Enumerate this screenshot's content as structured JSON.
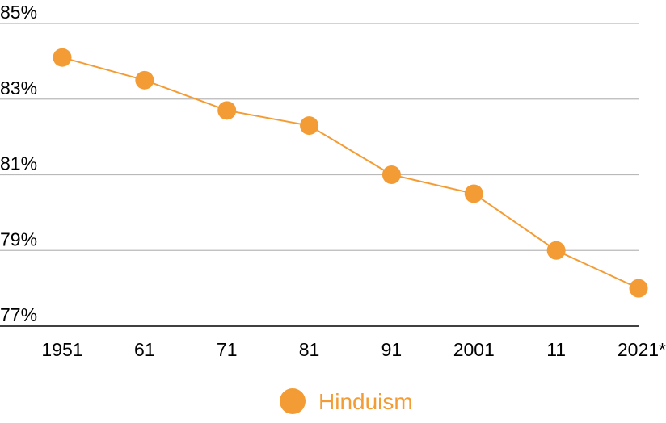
{
  "chart_data": {
    "type": "line",
    "categories": [
      "1951",
      "61",
      "71",
      "81",
      "91",
      "2001",
      "11",
      "2021*"
    ],
    "series": [
      {
        "name": "Hinduism",
        "values": [
          84.1,
          83.5,
          82.7,
          82.3,
          81.0,
          80.5,
          79.0,
          78.0
        ],
        "color": "#F39C35"
      }
    ],
    "y_ticks": [
      "77%",
      "79%",
      "81%",
      "83%",
      "85%"
    ],
    "ylim": [
      77,
      85
    ],
    "grid": true,
    "legend": "bottom-center",
    "title": "",
    "xlabel": "",
    "ylabel": ""
  }
}
